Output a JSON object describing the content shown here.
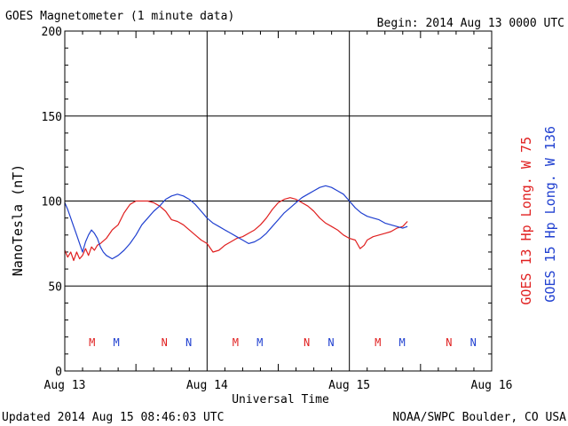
{
  "header": {
    "title": "GOES Magnetometer (1 minute data)",
    "begin": "Begin:  2014 Aug 13 0000 UTC"
  },
  "footer": {
    "updated": "Updated 2014 Aug 15 08:46:03 UTC",
    "credit": "NOAA/SWPC Boulder, CO USA"
  },
  "chart_data": {
    "type": "line",
    "title": "GOES Magnetometer (1 minute data)",
    "xlabel": "Universal Time",
    "ylabel": "NanoTesla (nT)",
    "xlim": [
      0,
      72
    ],
    "x_unit": "hours since 2014 Aug 13 0000 UTC",
    "ylim": [
      0,
      200
    ],
    "yticks": [
      0,
      50,
      100,
      150,
      200
    ],
    "xticks": [
      {
        "x": 0,
        "label": "Aug 13"
      },
      {
        "x": 24,
        "label": "Aug 14"
      },
      {
        "x": 48,
        "label": "Aug 15"
      },
      {
        "x": 72,
        "label": "Aug 16"
      }
    ],
    "grid": true,
    "series": [
      {
        "name": "GOES 13 Hp  Long. W 75",
        "color": "#e02020",
        "x": [
          0,
          0.5,
          1,
          1.5,
          2,
          2.5,
          3,
          3.5,
          4,
          4.5,
          5,
          5.5,
          6,
          7,
          8,
          9,
          10,
          11,
          12,
          13,
          14,
          15,
          16,
          17,
          18,
          19,
          20,
          21,
          22,
          23,
          24,
          25,
          26,
          27,
          28,
          29,
          30,
          31,
          32,
          33,
          34,
          35,
          36,
          37,
          38,
          39,
          40,
          41,
          42,
          43,
          44,
          45,
          46,
          47,
          48,
          49,
          49.8,
          50.5,
          51,
          52,
          53,
          54,
          55,
          56,
          57,
          57.8
        ],
        "y": [
          71,
          67,
          70,
          65,
          70,
          66,
          68,
          72,
          68,
          73,
          71,
          74,
          75,
          78,
          83,
          86,
          93,
          98,
          100,
          100,
          100,
          99,
          97,
          94,
          89,
          88,
          86,
          83,
          80,
          77,
          75,
          70,
          71,
          74,
          76,
          78,
          79,
          81,
          83,
          86,
          90,
          95,
          99,
          101,
          102,
          101,
          99,
          97,
          94,
          90,
          87,
          85,
          83,
          80,
          78,
          77,
          72,
          74,
          77,
          79,
          80,
          81,
          82,
          84,
          85,
          88
        ]
      },
      {
        "name": "GOES 15 Hp  Long. W 136",
        "color": "#2040d0",
        "x": [
          0,
          0.5,
          1,
          1.5,
          2,
          2.5,
          3,
          3.5,
          4,
          4.5,
          5,
          5.5,
          6,
          6.5,
          7,
          8,
          9,
          10,
          11,
          12,
          13,
          14,
          15,
          16,
          17,
          18,
          19,
          20,
          21,
          22,
          23,
          24,
          25,
          26,
          27,
          28,
          29,
          30,
          31,
          32,
          33,
          34,
          35,
          36,
          37,
          38,
          39,
          40,
          41,
          42,
          43,
          44,
          45,
          46,
          47,
          48,
          49,
          50,
          51,
          52,
          53,
          54,
          55,
          56,
          57,
          57.8
        ],
        "y": [
          99,
          95,
          90,
          85,
          80,
          75,
          70,
          76,
          80,
          83,
          81,
          78,
          73,
          70,
          68,
          66,
          68,
          71,
          75,
          80,
          86,
          90,
          94,
          97,
          101,
          103,
          104,
          103,
          101,
          98,
          94,
          90,
          87,
          85,
          83,
          81,
          79,
          77,
          75,
          76,
          78,
          81,
          85,
          89,
          93,
          96,
          99,
          102,
          104,
          106,
          108,
          109,
          108,
          106,
          104,
          100,
          96,
          93,
          91,
          90,
          89,
          87,
          86,
          85,
          84,
          85
        ]
      }
    ],
    "markers": [
      {
        "x": 4.6,
        "label": "M",
        "color": "#e02020"
      },
      {
        "x": 8.7,
        "label": "M",
        "color": "#2040d0"
      },
      {
        "x": 16.8,
        "label": "N",
        "color": "#e02020"
      },
      {
        "x": 20.9,
        "label": "N",
        "color": "#2040d0"
      },
      {
        "x": 28.8,
        "label": "M",
        "color": "#e02020"
      },
      {
        "x": 32.9,
        "label": "M",
        "color": "#2040d0"
      },
      {
        "x": 40.8,
        "label": "N",
        "color": "#e02020"
      },
      {
        "x": 44.9,
        "label": "N",
        "color": "#2040d0"
      },
      {
        "x": 52.8,
        "label": "M",
        "color": "#e02020"
      },
      {
        "x": 56.9,
        "label": "M",
        "color": "#2040d0"
      },
      {
        "x": 64.8,
        "label": "N",
        "color": "#e02020"
      },
      {
        "x": 68.9,
        "label": "N",
        "color": "#2040d0"
      }
    ]
  }
}
